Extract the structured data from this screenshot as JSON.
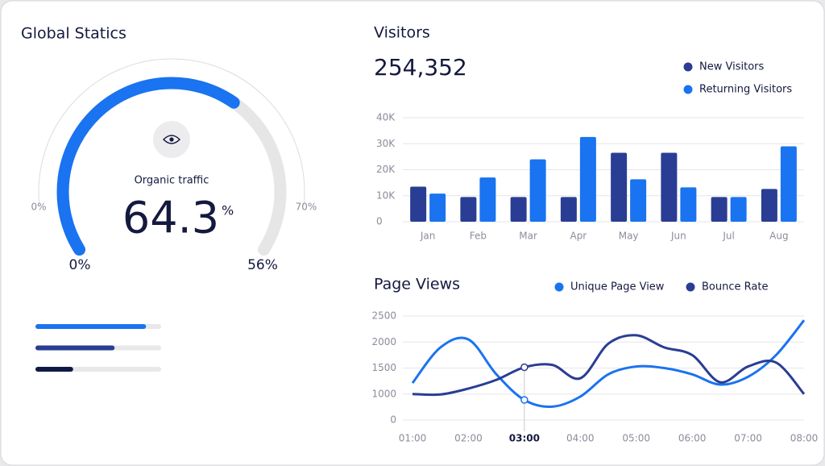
{
  "chart_data": [
    {
      "type": "gauge",
      "title": "Global Statics",
      "label": "Organic traffic",
      "value": 64.3,
      "unit": "%",
      "ylim": [
        0,
        100
      ],
      "scale_labels": [
        "0%",
        "70%"
      ],
      "end_labels": [
        "0%",
        "56%"
      ],
      "color": "#1a73f0",
      "track_color": "#e6e6e6"
    },
    {
      "type": "progress",
      "values": [
        88,
        63,
        30
      ],
      "colors": [
        "#1a73f0",
        "#2a3d94",
        "#0e1a45"
      ],
      "ylim": [
        0,
        100
      ]
    },
    {
      "type": "bar",
      "title": "Visitors",
      "total": "254,352",
      "categories": [
        "Jan",
        "Feb",
        "Mar",
        "Apr",
        "May",
        "Jun",
        "Jul",
        "Aug"
      ],
      "series": [
        {
          "name": "New Visitors",
          "color": "#2a3d94",
          "values": [
            13500,
            9500,
            9500,
            9500,
            26500,
            26500,
            9500,
            12600
          ]
        },
        {
          "name": "Returning Visitors",
          "color": "#1a73f0",
          "values": [
            10800,
            17000,
            24000,
            32600,
            16300,
            13200,
            9500,
            29000
          ]
        }
      ],
      "ylim": [
        0,
        40000
      ],
      "yticks": [
        0,
        {
          "value": 10000,
          "label": "10K"
        },
        {
          "value": 20000,
          "label": "20K"
        },
        {
          "value": 30000,
          "label": "30K"
        },
        {
          "value": 40000,
          "label": "40K"
        }
      ],
      "grid": true
    },
    {
      "type": "line",
      "title": "Page Views",
      "x": [
        1,
        1.5,
        2,
        2.5,
        3,
        3.5,
        4,
        4.5,
        5,
        5.5,
        6,
        6.5,
        7,
        7.5,
        8
      ],
      "xlim": [
        1,
        8
      ],
      "xticks": [
        {
          "value": 1,
          "label": "01:00"
        },
        {
          "value": 2,
          "label": "02:00"
        },
        {
          "value": 3,
          "label": "03:00"
        },
        {
          "value": 4,
          "label": "04:00"
        },
        {
          "value": 5,
          "label": "05:00"
        },
        {
          "value": 6,
          "label": "06:00"
        },
        {
          "value": 7,
          "label": "07:00"
        },
        {
          "value": 8,
          "label": "08:00"
        }
      ],
      "highlight_x": 3,
      "series": [
        {
          "name": "Unique Page View",
          "color": "#1a73f0",
          "values": [
            1212,
            1897,
            2050,
            1379,
            774,
            516,
            903,
            1379,
            1530,
            1500,
            1379,
            1182,
            1333,
            1750,
            2419
          ]
        },
        {
          "name": "Bounce Rate",
          "color": "#2a3d94",
          "values": [
            1000,
            984,
            1106,
            1273,
            1515,
            1560,
            1303,
            1968,
            2129,
            1897,
            1750,
            1227,
            1530,
            1606,
            1000
          ]
        }
      ],
      "ylim": [
        0,
        2500
      ],
      "yticks": [
        0,
        1000,
        1500,
        2000,
        2500
      ],
      "grid": true
    }
  ]
}
